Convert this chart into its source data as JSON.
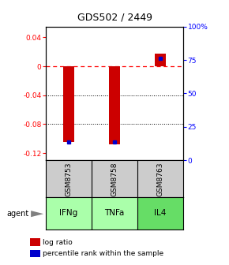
{
  "title": "GDS502 / 2449",
  "samples": [
    "GSM8753",
    "GSM8758",
    "GSM8763"
  ],
  "agents": [
    "IFNg",
    "TNFa",
    "IL4"
  ],
  "log_ratios": [
    -0.105,
    -0.108,
    0.018
  ],
  "percentile_ranks": [
    0.14,
    0.14,
    0.76
  ],
  "bar_color": "#cc0000",
  "percentile_color": "#0000cc",
  "ylim_left": [
    -0.13,
    0.055
  ],
  "ylim_right": [
    0.0,
    1.0
  ],
  "yticks_left": [
    0.04,
    0.0,
    -0.04,
    -0.08,
    -0.12
  ],
  "ytick_labels_left": [
    "0.04",
    "0",
    "-0.04",
    "-0.08",
    "-0.12"
  ],
  "yticks_right": [
    1.0,
    0.75,
    0.5,
    0.25,
    0.0
  ],
  "ytick_labels_right": [
    "100%",
    "75",
    "50",
    "25",
    "0"
  ],
  "gridlines": [
    -0.04,
    -0.08
  ],
  "sample_bg_color": "#cccccc",
  "agent_colors": [
    "#aaffaa",
    "#aaffaa",
    "#66dd66"
  ],
  "bar_width": 0.25,
  "legend_red_label": "log ratio",
  "legend_blue_label": "percentile rank within the sample",
  "agent_label": "agent"
}
